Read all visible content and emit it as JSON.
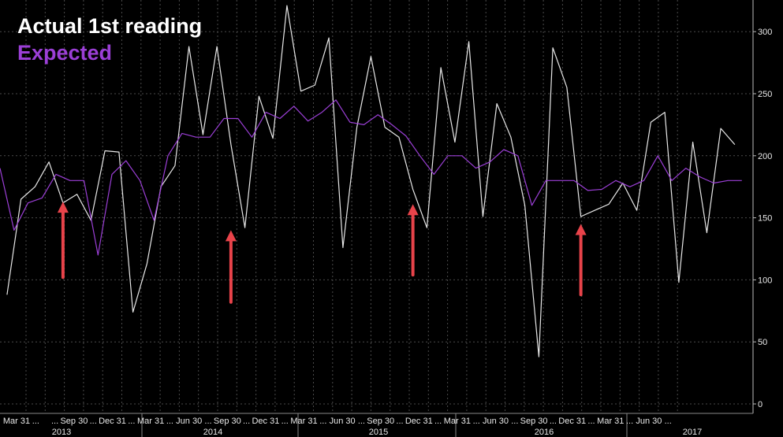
{
  "chart_data": {
    "type": "line",
    "legend": {
      "placement": "top-left",
      "actual": "Actual 1st reading",
      "expected": "Expected"
    },
    "colors": {
      "background": "#000000",
      "actual": "#e8e8e8",
      "expected": "#9b3fd6",
      "grid": "#4a4a4a",
      "arrow": "#e8434a"
    },
    "grid": true,
    "ylim": [
      0,
      325
    ],
    "y_ticks": [
      0,
      50,
      100,
      150,
      200,
      250,
      300
    ],
    "x_ticks": [
      "Mar 31",
      "...",
      "...",
      "Sep 30",
      "...",
      "Dec 31",
      "...",
      "Mar 31",
      "...",
      "Jun 30",
      "...",
      "Sep 30",
      "...",
      "Dec 31",
      "...",
      "Mar 31",
      "...",
      "Jun 30",
      "...",
      "Sep 30",
      "...",
      "Dec 31",
      "...",
      "Mar 31",
      "...",
      "Jun 30",
      "...",
      "Sep 30",
      "...",
      "Dec 31",
      "...",
      "Mar 31",
      "...",
      "Jun 30",
      "..."
    ],
    "years": [
      "2013",
      "2014",
      "2015",
      "2016",
      "2017"
    ],
    "series": [
      {
        "name": "Actual 1st reading",
        "values": [
          88,
          165,
          175,
          195,
          162,
          169,
          148,
          204,
          203,
          74,
          113,
          175,
          192,
          288,
          217,
          288,
          209,
          142,
          248,
          214,
          321,
          252,
          257,
          295,
          126,
          223,
          280,
          223,
          215,
          173,
          142,
          271,
          211,
          292,
          151,
          242,
          215,
          160,
          38,
          287,
          255,
          151,
          156,
          161,
          178,
          156,
          227,
          235,
          98,
          211,
          138,
          222,
          209
        ]
      },
      {
        "name": "Expected",
        "values": [
          190,
          140,
          162,
          166,
          185,
          180,
          180,
          120,
          185,
          196,
          180,
          148,
          200,
          218,
          215,
          215,
          230,
          230,
          215,
          235,
          230,
          240,
          228,
          235,
          245,
          227,
          225,
          233,
          225,
          216,
          200,
          185,
          200,
          200,
          190,
          195,
          205,
          200,
          160,
          180,
          180,
          180,
          172,
          173,
          180,
          175,
          180,
          200,
          180,
          190,
          183,
          178,
          180,
          180
        ]
      }
    ],
    "arrows": [
      {
        "index": 4.5,
        "value_tip": 163,
        "value_tail": 102
      },
      {
        "index": 16.5,
        "value_tip": 140,
        "value_tail": 82
      },
      {
        "index": 29.5,
        "value_tip": 161,
        "value_tail": 104
      },
      {
        "index": 41.5,
        "value_tip": 145,
        "value_tail": 88
      }
    ]
  }
}
